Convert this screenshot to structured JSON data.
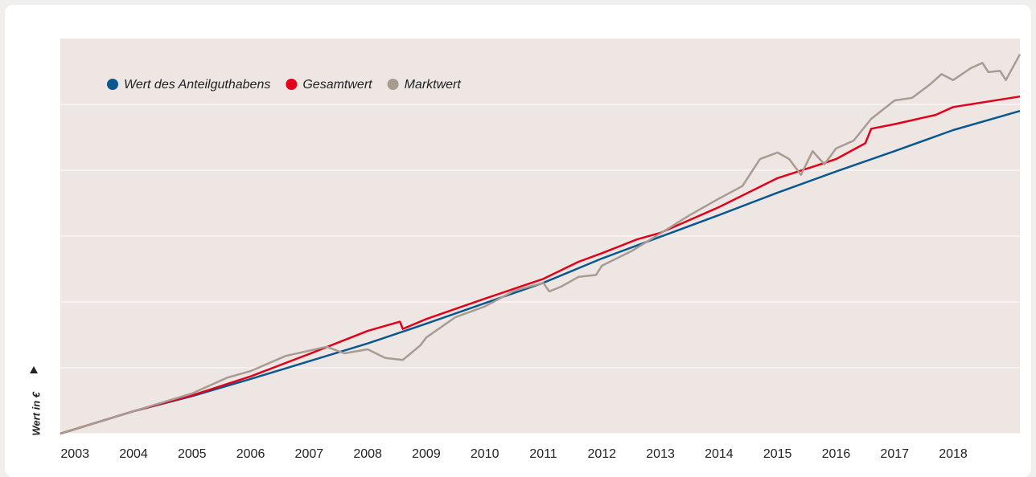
{
  "chart_data": {
    "type": "line",
    "y_label": "Wert in €",
    "xlim": [
      2002.75,
      2019.14
    ],
    "xticks": [
      2003,
      2004,
      2005,
      2006,
      2007,
      2008,
      2009,
      2010,
      2011,
      2012,
      2013,
      2014,
      2015,
      2016,
      2017,
      2018
    ],
    "ylim": [
      0,
      6
    ],
    "yticks": [
      0,
      1,
      2,
      3,
      4,
      5
    ],
    "grid": true,
    "background": "#ede6e3",
    "series": [
      {
        "name": "Wert des Anteilguthabens",
        "color": "#0b5790",
        "x": [
          2002.75,
          2004,
          2005,
          2006,
          2007,
          2008,
          2009,
          2010,
          2011,
          2012,
          2013,
          2014,
          2015,
          2016,
          2017,
          2018,
          2019.14
        ],
        "values": [
          0,
          0.34,
          0.57,
          0.83,
          1.1,
          1.37,
          1.67,
          1.98,
          2.29,
          2.66,
          2.99,
          3.32,
          3.66,
          3.98,
          4.29,
          4.61,
          4.9
        ]
      },
      {
        "name": "Gesamtwert",
        "color": "#e2001a",
        "x": [
          2002.75,
          2004,
          2005,
          2006,
          2007,
          2008,
          2008.55,
          2008.6,
          2009,
          2010,
          2011,
          2011.6,
          2012,
          2012.6,
          2013,
          2014,
          2015,
          2015.8,
          2016,
          2016.5,
          2016.6,
          2017,
          2017.7,
          2018,
          2019.14
        ],
        "values": [
          0,
          0.34,
          0.58,
          0.87,
          1.21,
          1.56,
          1.7,
          1.59,
          1.74,
          2.05,
          2.35,
          2.61,
          2.74,
          2.95,
          3.05,
          3.44,
          3.88,
          4.11,
          4.17,
          4.41,
          4.63,
          4.7,
          4.84,
          4.96,
          5.12
        ]
      },
      {
        "name": "Marktwert",
        "color": "#a89b92",
        "x": [
          2002.75,
          2004,
          2005,
          2005.6,
          2006,
          2006.6,
          2007,
          2007.3,
          2007.6,
          2008,
          2008.3,
          2008.6,
          2008.9,
          2009,
          2009.5,
          2010,
          2010.5,
          2011,
          2011.1,
          2011.3,
          2011.6,
          2011.9,
          2012,
          2012.5,
          2013,
          2013.5,
          2014,
          2014.4,
          2014.7,
          2015,
          2015.2,
          2015.4,
          2015.6,
          2015.8,
          2016,
          2016.3,
          2016.6,
          2017,
          2017.3,
          2017.6,
          2017.8,
          2018,
          2018.3,
          2018.5,
          2018.6,
          2018.8,
          2018.9,
          2019.14
        ],
        "values": [
          0,
          0.34,
          0.61,
          0.85,
          0.95,
          1.18,
          1.26,
          1.32,
          1.22,
          1.28,
          1.15,
          1.12,
          1.34,
          1.46,
          1.77,
          1.93,
          2.17,
          2.29,
          2.16,
          2.23,
          2.38,
          2.41,
          2.55,
          2.77,
          3.04,
          3.32,
          3.57,
          3.76,
          4.17,
          4.27,
          4.17,
          3.93,
          4.29,
          4.09,
          4.33,
          4.45,
          4.78,
          5.06,
          5.1,
          5.3,
          5.46,
          5.37,
          5.55,
          5.63,
          5.49,
          5.51,
          5.37,
          5.76
        ]
      }
    ]
  }
}
